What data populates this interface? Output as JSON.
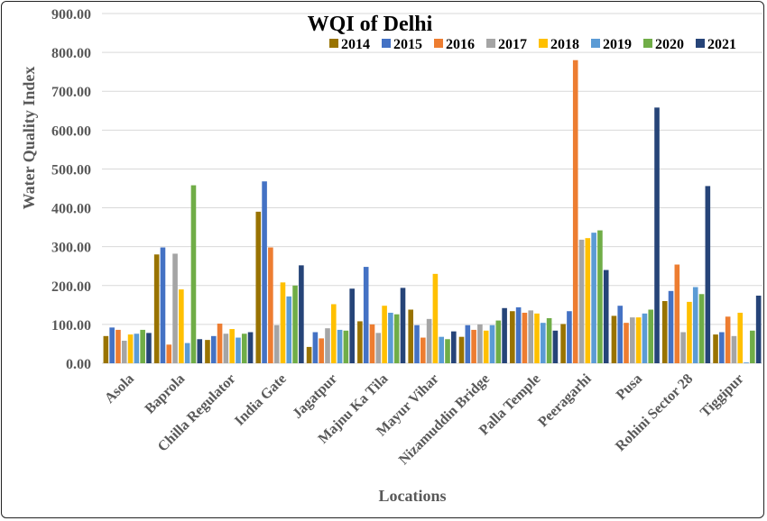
{
  "chart_data": {
    "type": "bar",
    "title": "WQI of Delhi",
    "xlabel": "Locations",
    "ylabel": "Water Quality Index",
    "ylim": [
      0,
      900
    ],
    "y_ticks": [
      "0.00",
      "100.00",
      "200.00",
      "300.00",
      "400.00",
      "500.00",
      "600.00",
      "700.00",
      "800.00",
      "900.00"
    ],
    "grid": true,
    "legend_position": "top",
    "categories": [
      "Asola",
      "Baprola",
      "Chilla Regulator",
      "India Gate",
      "Jagatpur",
      "Majnu Ka Tila",
      "Mayur Vihar",
      "Nizamuddin Bridge",
      "Palla Temple",
      "Peeragarhi",
      "Pusa",
      "Rohini Sector 28",
      "Tiggipur"
    ],
    "series": [
      {
        "name": "2014",
        "color": "#997300",
        "values": [
          70,
          280,
          60,
          390,
          42,
          108,
          138,
          68,
          134,
          101,
          122,
          160,
          74
        ]
      },
      {
        "name": "2015",
        "color": "#4472c4",
        "values": [
          92,
          298,
          70,
          468,
          80,
          248,
          98,
          98,
          144,
          134,
          148,
          186,
          80
        ]
      },
      {
        "name": "2016",
        "color": "#ed7d31",
        "values": [
          86,
          48,
          102,
          298,
          64,
          100,
          66,
          86,
          130,
          780,
          104,
          254,
          120
        ]
      },
      {
        "name": "2017",
        "color": "#a5a5a5",
        "values": [
          58,
          282,
          76,
          98,
          90,
          78,
          114,
          100,
          136,
          318,
          118,
          80,
          70
        ]
      },
      {
        "name": "2018",
        "color": "#ffc000",
        "values": [
          74,
          190,
          88,
          208,
          152,
          148,
          230,
          84,
          128,
          322,
          118,
          158,
          130
        ]
      },
      {
        "name": "2019",
        "color": "#5b9bd5",
        "values": [
          76,
          52,
          66,
          172,
          86,
          130,
          68,
          98,
          104,
          336,
          128,
          196,
          2
        ]
      },
      {
        "name": "2020",
        "color": "#70ad47",
        "values": [
          86,
          458,
          76,
          200,
          84,
          126,
          62,
          110,
          116,
          342,
          138,
          178,
          84
        ]
      },
      {
        "name": "2021",
        "color": "#264478",
        "values": [
          78,
          62,
          80,
          252,
          192,
          194,
          82,
          142,
          84,
          240,
          658,
          456,
          174
        ]
      }
    ]
  }
}
